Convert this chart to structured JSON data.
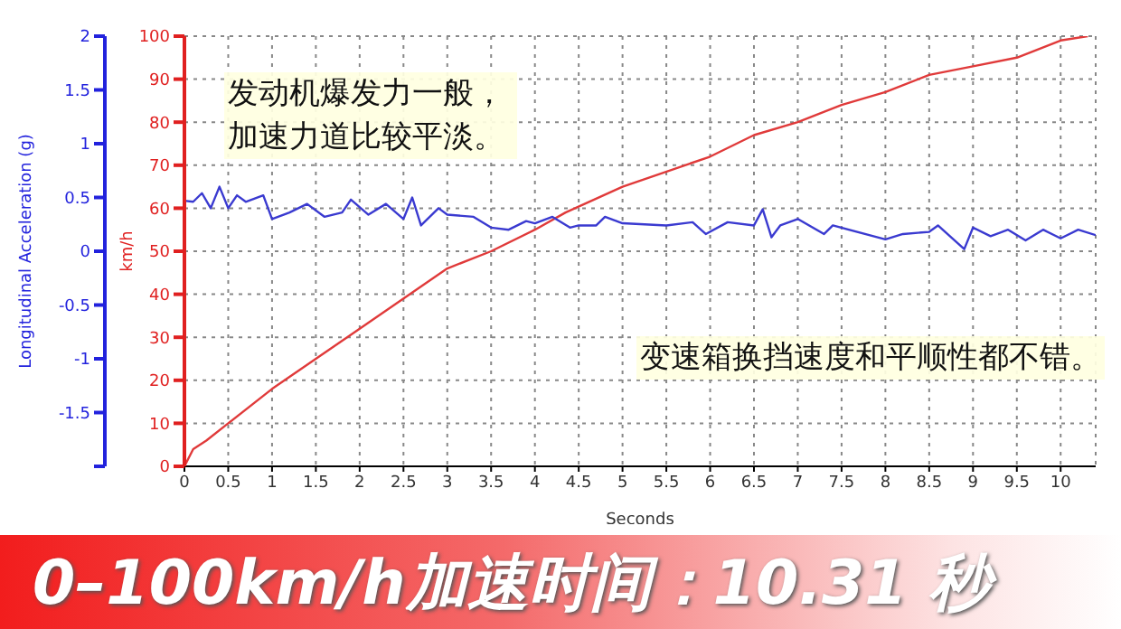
{
  "chart_data": {
    "type": "line",
    "title": "0–100km/h加速时间：10.31 秒",
    "xlabel": "Seconds",
    "ylabel": "km/h",
    "y2label": "Longitudinal Acceleration (g)",
    "annotations": [
      "发动机爆发力一般，加速力道比较平淡。",
      "变速箱换挡速度和平顺性都不错。"
    ],
    "xlim": [
      0,
      10.4
    ],
    "xticks": [
      0,
      0.5,
      1,
      1.5,
      2,
      2.5,
      3,
      3.5,
      4,
      4.5,
      5,
      5.5,
      6,
      6.5,
      7,
      7.5,
      8,
      8.5,
      9,
      9.5,
      10
    ],
    "ylim": [
      0,
      100
    ],
    "yticks": [
      0,
      10,
      20,
      30,
      40,
      50,
      60,
      70,
      80,
      90,
      100
    ],
    "y2lim": [
      -2,
      2
    ],
    "y2ticks": [
      {
        "value": -2,
        "label": null
      },
      -1.5,
      -1,
      -0.5,
      0,
      0.5,
      1,
      1.5,
      2
    ],
    "grid": true,
    "marker": "none",
    "line_style": "solid",
    "series": [
      {
        "color": "#e03a3a",
        "x": [
          0,
          0.1,
          0.25,
          0.5,
          1,
          2,
          3,
          3.5,
          4,
          4.35,
          5,
          6,
          6.5,
          7,
          7.5,
          8,
          8.5,
          9,
          9.5,
          10,
          10.31
        ],
        "values": [
          0,
          4,
          6,
          10,
          18,
          32,
          46,
          50,
          55,
          59,
          65,
          72,
          77,
          80,
          84,
          87,
          91,
          93,
          95,
          99,
          100
        ]
      },
      {
        "color": "#3a3ad0",
        "axis": "y2",
        "x": [
          0,
          0.1,
          0.2,
          0.3,
          0.4,
          0.5,
          0.6,
          0.7,
          0.9,
          1.0,
          1.2,
          1.4,
          1.6,
          1.8,
          1.9,
          2.1,
          2.3,
          2.5,
          2.6,
          2.7,
          2.9,
          3.0,
          3.3,
          3.5,
          3.7,
          3.9,
          4.0,
          4.2,
          4.4,
          4.5,
          4.7,
          4.8,
          5.0,
          5.5,
          5.8,
          5.95,
          6.2,
          6.5,
          6.6,
          6.7,
          6.8,
          7.0,
          7.3,
          7.4,
          8.0,
          8.2,
          8.5,
          8.6,
          8.9,
          9.0,
          9.2,
          9.4,
          9.6,
          9.8,
          10.0,
          10.2,
          10.4
        ],
        "values": [
          0.47,
          0.46,
          0.54,
          0.4,
          0.6,
          0.4,
          0.52,
          0.46,
          0.52,
          0.3,
          0.36,
          0.44,
          0.32,
          0.36,
          0.48,
          0.34,
          0.44,
          0.3,
          0.5,
          0.24,
          0.4,
          0.34,
          0.32,
          0.22,
          0.2,
          0.28,
          0.26,
          0.32,
          0.22,
          0.24,
          0.24,
          0.32,
          0.26,
          0.24,
          0.27,
          0.16,
          0.27,
          0.24,
          0.39,
          0.13,
          0.24,
          0.3,
          0.16,
          0.24,
          0.11,
          0.16,
          0.18,
          0.24,
          0.02,
          0.22,
          0.14,
          0.2,
          0.1,
          0.2,
          0.12,
          0.2,
          0.15
        ]
      }
    ]
  }
}
